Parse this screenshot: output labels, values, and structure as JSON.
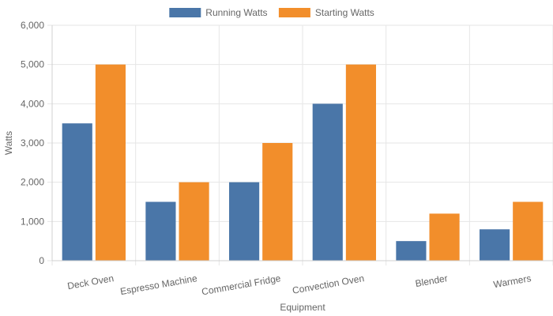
{
  "chart_data": {
    "type": "bar",
    "title": "",
    "xlabel": "Equipment",
    "ylabel": "Watts",
    "categories": [
      "Deck Oven",
      "Espresso Machine",
      "Commercial Fridge",
      "Convection Oven",
      "Blender",
      "Warmers"
    ],
    "series": [
      {
        "name": "Running Watts",
        "color": "#4a76a8",
        "values": [
          3500,
          1500,
          2000,
          4000,
          500,
          800
        ]
      },
      {
        "name": "Starting Watts",
        "color": "#f28e2b",
        "values": [
          5000,
          2000,
          3000,
          5000,
          1200,
          1500
        ]
      }
    ],
    "ylim": [
      0,
      6000
    ],
    "yticks": [
      "0",
      "1,000",
      "2,000",
      "3,000",
      "4,000",
      "5,000",
      "6,000"
    ],
    "grid": true,
    "legend_position": "top-center"
  }
}
